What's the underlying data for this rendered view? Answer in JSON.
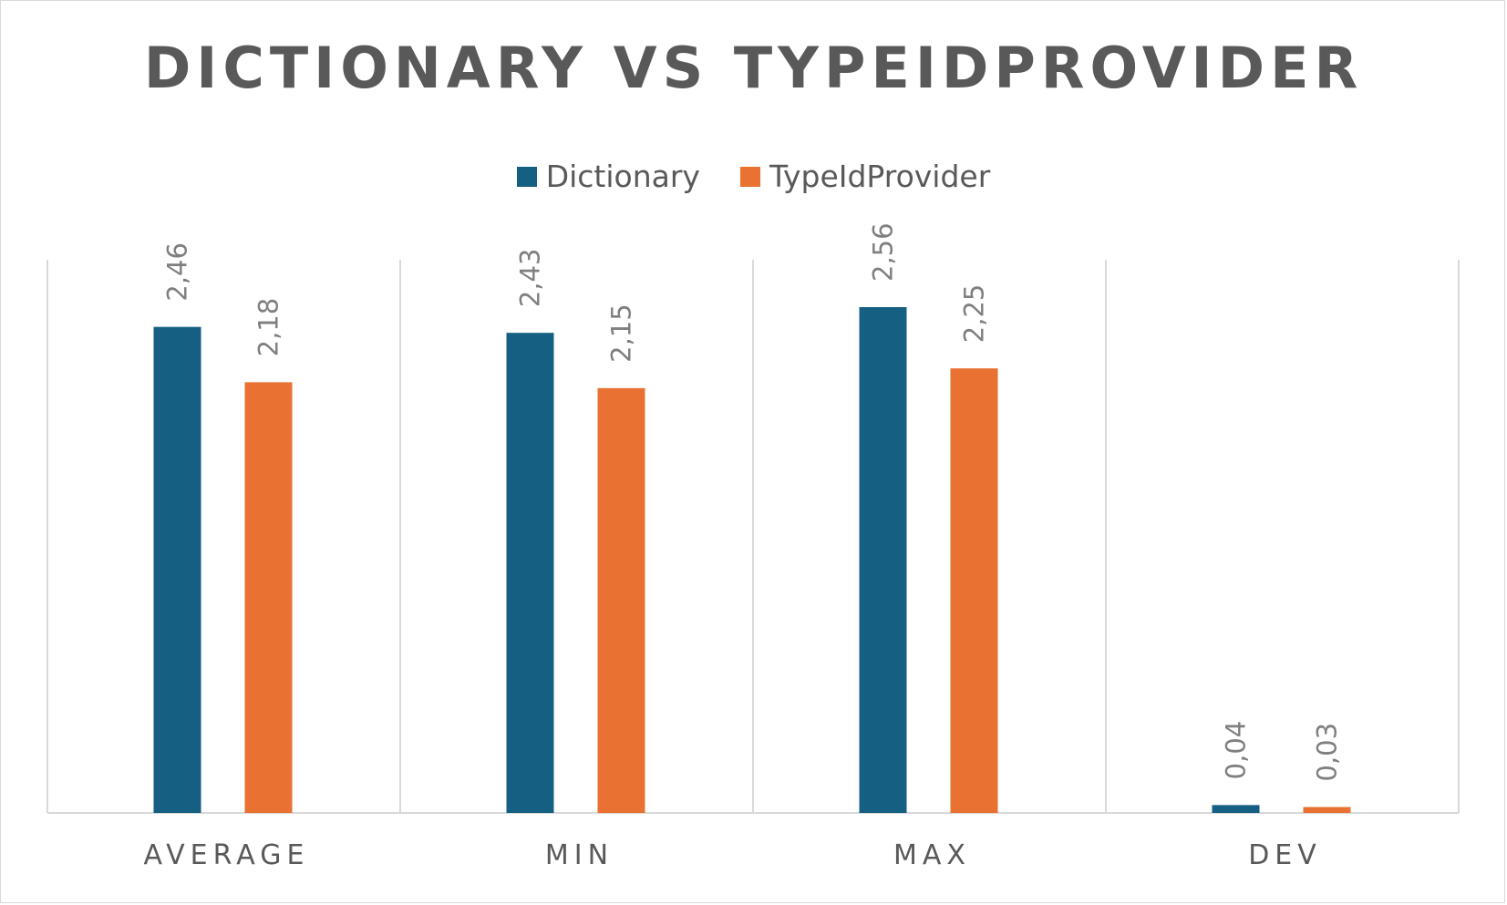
{
  "chart_data": {
    "type": "bar",
    "title": "DICTIONARY VS TYPEIDPROVIDER",
    "categories": [
      "AVERAGE",
      "MIN",
      "MAX",
      "DEV"
    ],
    "series": [
      {
        "name": "Dictionary",
        "values": [
          2.46,
          2.43,
          2.56,
          0.04
        ],
        "labels": [
          "2,46",
          "2,43",
          "2,56",
          "0,04"
        ],
        "color": "#156082"
      },
      {
        "name": "TypeIdProvider",
        "values": [
          2.18,
          2.15,
          2.25,
          0.03
        ],
        "labels": [
          "2,18",
          "2,15",
          "2,25",
          "0,03"
        ],
        "color": "#E97132"
      }
    ],
    "ylim": [
      0,
      3.0
    ],
    "legend": "top-center",
    "grid": "vertical category dividers"
  }
}
